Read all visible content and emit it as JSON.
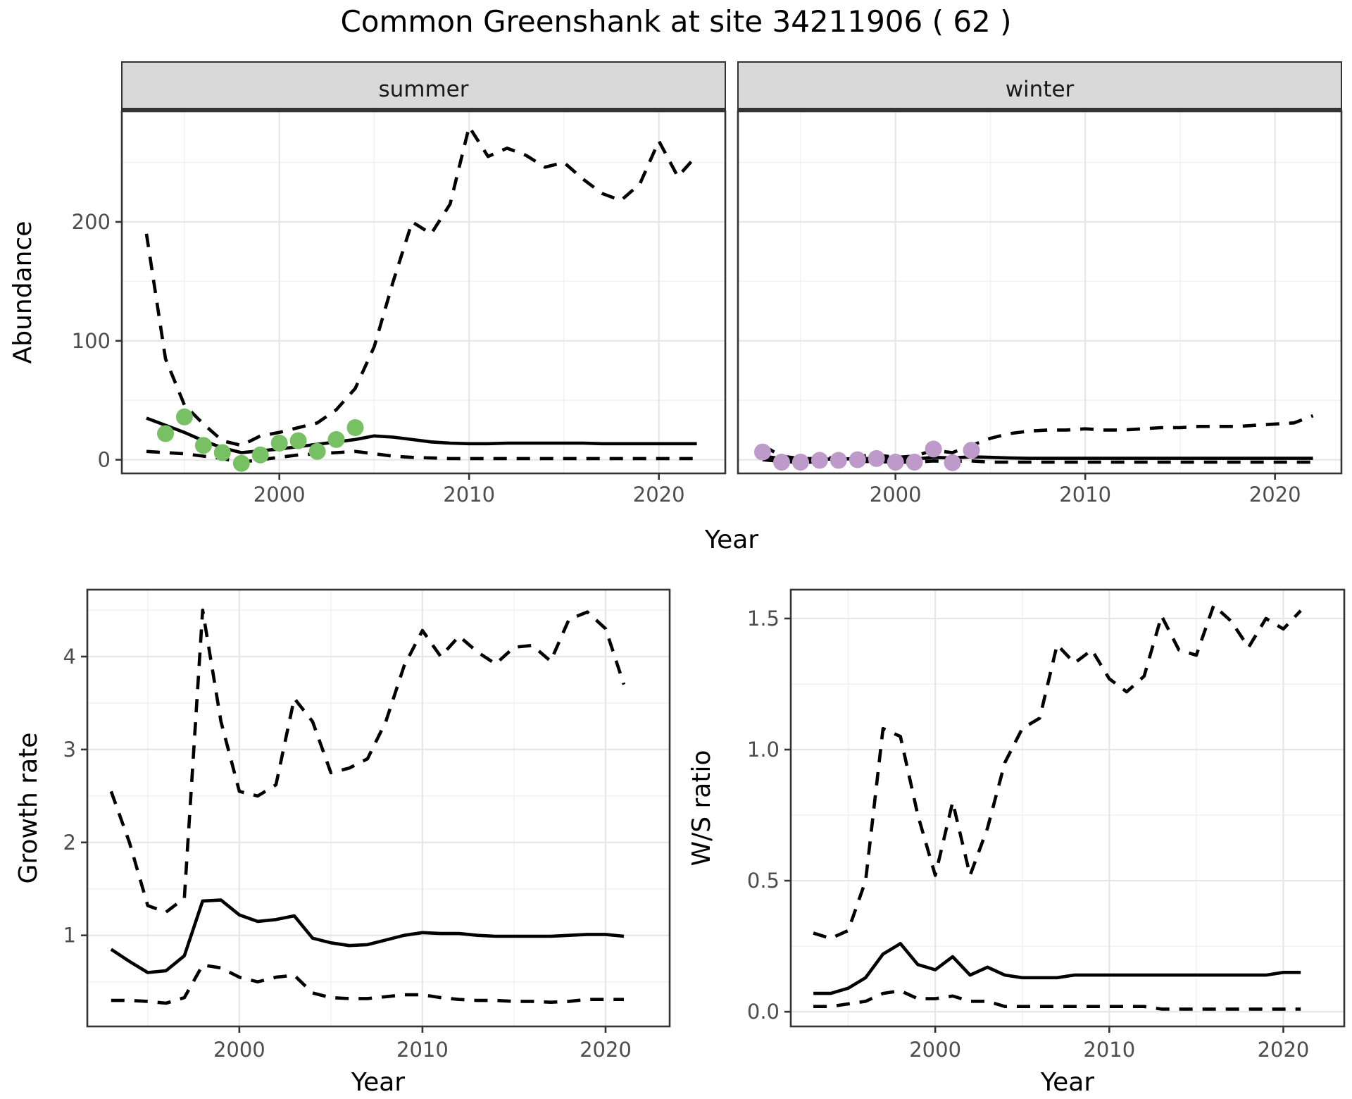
{
  "title": "Common Greenshank at site 34211906 ( 62 )",
  "colors": {
    "line": "#000000",
    "summer_points": "#78c064",
    "winter_points": "#bd9aca",
    "strip_bg": "#d9d9d9",
    "border": "#333333",
    "grid_major": "#e6e6e6",
    "grid_minor": "#f2f2f2",
    "tick_text": "#4d4d4d",
    "facet_text": "#1a1a1a"
  },
  "axes": {
    "top_y": "Abundance",
    "top_x": "Year",
    "bottom_left_y": "Growth rate",
    "bottom_left_x": "Year",
    "bottom_right_y": "W/S ratio",
    "bottom_right_x": "Year"
  },
  "chart_data": [
    {
      "id": "abundance_summer",
      "type": "line",
      "facet": "summer",
      "xlabel": "Year",
      "ylabel": "Abundance",
      "xlim": [
        1991.7,
        2023.5
      ],
      "ylim": [
        -11.5,
        293
      ],
      "x_tick_values": [
        2000,
        2010,
        2020
      ],
      "x_tick_labels": [
        "2000",
        "2010",
        "2020"
      ],
      "x_minor": [
        1995,
        2005,
        2015
      ],
      "y_tick_values": [
        0,
        100,
        200
      ],
      "y_tick_labels": [
        "0",
        "100",
        "200"
      ],
      "y_minor": [
        50,
        150,
        250
      ],
      "series": [
        {
          "name": "upper_ci",
          "style": "dashed",
          "x": [
            1993,
            1994,
            1995,
            1996,
            1997,
            1998,
            1999,
            2000,
            2001,
            2002,
            2003,
            2004,
            2005,
            2006,
            2007,
            2008,
            2009,
            2010,
            2011,
            2012,
            2013,
            2014,
            2015,
            2016,
            2017,
            2018,
            2019,
            2020,
            2021,
            2022
          ],
          "y": [
            190,
            85,
            46,
            30,
            16,
            12,
            20,
            23,
            27,
            31,
            42,
            60,
            95,
            150,
            200,
            190,
            215,
            280,
            255,
            262,
            256,
            246,
            250,
            236,
            224,
            218,
            232,
            268,
            238,
            256
          ]
        },
        {
          "name": "lower_ci",
          "style": "dashed",
          "x": [
            1993,
            1994,
            1995,
            1996,
            1997,
            1998,
            1999,
            2000,
            2001,
            2002,
            2003,
            2004,
            2005,
            2006,
            2007,
            2008,
            2009,
            2010,
            2011,
            2012,
            2013,
            2014,
            2015,
            2016,
            2017,
            2018,
            2019,
            2020,
            2021,
            2022
          ],
          "y": [
            7,
            6,
            5,
            3,
            1,
            -2,
            0,
            2,
            4,
            5,
            6,
            7,
            5,
            3,
            2,
            1.5,
            1,
            1,
            1,
            1,
            1,
            1,
            1,
            1,
            1,
            1,
            1,
            1,
            1,
            1
          ]
        },
        {
          "name": "median",
          "style": "solid",
          "x": [
            1993,
            1994,
            1995,
            1996,
            1997,
            1998,
            1999,
            2000,
            2001,
            2002,
            2003,
            2004,
            2005,
            2006,
            2007,
            2008,
            2009,
            2010,
            2011,
            2012,
            2013,
            2014,
            2015,
            2016,
            2017,
            2018,
            2019,
            2020,
            2021,
            2022
          ],
          "y": [
            35,
            29,
            23,
            16,
            10,
            6,
            7.5,
            9,
            11,
            13,
            15,
            17,
            20,
            19,
            17,
            15,
            14,
            13.5,
            13.5,
            14,
            14,
            14,
            14,
            14,
            13.5,
            13.5,
            13.5,
            13.5,
            13.5,
            13.5
          ]
        },
        {
          "name": "observed_counts",
          "style": "points",
          "color": "#78c064",
          "x": [
            1994,
            1995,
            1996,
            1997,
            1998,
            1999,
            2000,
            2001,
            2002,
            2003,
            2004
          ],
          "y": [
            22,
            36,
            12,
            6,
            -3,
            4,
            14,
            16,
            7,
            17,
            27
          ]
        }
      ]
    },
    {
      "id": "abundance_winter",
      "type": "line",
      "facet": "winter",
      "xlabel": "Year",
      "ylabel": "Abundance",
      "xlim": [
        1991.7,
        2023.5
      ],
      "ylim": [
        -11.5,
        293
      ],
      "x_tick_values": [
        2000,
        2010,
        2020
      ],
      "x_tick_labels": [
        "2000",
        "2010",
        "2020"
      ],
      "x_minor": [
        1995,
        2005,
        2015
      ],
      "y_tick_values": [
        0,
        100,
        200
      ],
      "y_tick_labels": [
        "0",
        "100",
        "200"
      ],
      "y_minor": [
        50,
        150,
        250
      ],
      "series": [
        {
          "name": "upper_ci",
          "style": "dashed",
          "x": [
            1993,
            1994,
            1995,
            1996,
            1997,
            1998,
            1999,
            2000,
            2001,
            2002,
            2003,
            2004,
            2005,
            2006,
            2007,
            2008,
            2009,
            2010,
            2011,
            2012,
            2013,
            2014,
            2015,
            2016,
            2017,
            2018,
            2019,
            2020,
            2021,
            2022
          ],
          "y": [
            12,
            3,
            1,
            1,
            2,
            3,
            4,
            2,
            3,
            8,
            6,
            12,
            18,
            22,
            24,
            25,
            25,
            26,
            25,
            25,
            26,
            27,
            27,
            28,
            28,
            28,
            29,
            30,
            31,
            37
          ]
        },
        {
          "name": "lower_ci",
          "style": "dashed",
          "x": [
            1993,
            1994,
            1995,
            1996,
            1997,
            1998,
            1999,
            2000,
            2001,
            2002,
            2003,
            2004,
            2005,
            2006,
            2007,
            2008,
            2009,
            2010,
            2011,
            2012,
            2013,
            2014,
            2015,
            2016,
            2017,
            2018,
            2019,
            2020,
            2021,
            2022
          ],
          "y": [
            0,
            -1.5,
            -2,
            -2,
            -2,
            -1.5,
            -1.5,
            -2,
            -2,
            -1,
            -1.5,
            -1,
            -2,
            -2,
            -2,
            -2,
            -2,
            -2,
            -2,
            -2,
            -2,
            -2,
            -2,
            -2,
            -2,
            -2,
            -2,
            -2,
            -2,
            -2
          ]
        },
        {
          "name": "median",
          "style": "solid",
          "x": [
            1993,
            1994,
            1995,
            1996,
            1997,
            1998,
            1999,
            2000,
            2001,
            2002,
            2003,
            2004,
            2005,
            2006,
            2007,
            2008,
            2009,
            2010,
            2011,
            2012,
            2013,
            2014,
            2015,
            2016,
            2017,
            2018,
            2019,
            2020,
            2021,
            2022
          ],
          "y": [
            3,
            1,
            0.5,
            0.5,
            0.5,
            1,
            1,
            0.5,
            0.5,
            2,
            1.5,
            2.5,
            2,
            1.5,
            1.2,
            1.2,
            1.2,
            1.2,
            1.2,
            1.2,
            1.2,
            1.2,
            1.2,
            1.2,
            1.2,
            1.2,
            1.2,
            1.2,
            1.2,
            1.2
          ]
        },
        {
          "name": "observed_counts",
          "style": "points",
          "color": "#bd9aca",
          "x": [
            1993,
            1994,
            1995,
            1996,
            1997,
            1998,
            1999,
            2000,
            2001,
            2002,
            2003,
            2004
          ],
          "y": [
            6.5,
            -2,
            -2,
            -0.5,
            -0.5,
            0,
            1,
            -2,
            -2,
            9,
            -2.5,
            8
          ]
        }
      ]
    },
    {
      "id": "growth_rate",
      "type": "line",
      "facet": null,
      "xlabel": "Year",
      "ylabel": "Growth rate",
      "xlim": [
        1991.7,
        2023.5
      ],
      "ylim": [
        0.02,
        4.72
      ],
      "x_tick_values": [
        2000,
        2010,
        2020
      ],
      "x_tick_labels": [
        "2000",
        "2010",
        "2020"
      ],
      "x_minor": [
        1995,
        2005,
        2015
      ],
      "y_tick_values": [
        1,
        2,
        3,
        4
      ],
      "y_tick_labels": [
        "1",
        "2",
        "3",
        "4"
      ],
      "y_minor": [
        0.5,
        1.5,
        2.5,
        3.5,
        4.5
      ],
      "series": [
        {
          "name": "upper_ci",
          "style": "dashed",
          "x": [
            1993,
            1994,
            1995,
            1996,
            1997,
            1998,
            1999,
            2000,
            2001,
            2002,
            2003,
            2004,
            2005,
            2006,
            2007,
            2008,
            2009,
            2010,
            2011,
            2012,
            2013,
            2014,
            2015,
            2016,
            2017,
            2018,
            2019,
            2020,
            2021
          ],
          "y": [
            2.55,
            2.0,
            1.32,
            1.25,
            1.4,
            4.5,
            3.3,
            2.55,
            2.5,
            2.62,
            3.55,
            3.3,
            2.75,
            2.8,
            2.9,
            3.3,
            3.9,
            4.28,
            4.0,
            4.22,
            4.05,
            3.92,
            4.1,
            4.12,
            3.95,
            4.4,
            4.48,
            4.3,
            3.7
          ]
        },
        {
          "name": "lower_ci",
          "style": "dashed",
          "x": [
            1993,
            1994,
            1995,
            1996,
            1997,
            1998,
            1999,
            2000,
            2001,
            2002,
            2003,
            2004,
            2005,
            2006,
            2007,
            2008,
            2009,
            2010,
            2011,
            2012,
            2013,
            2014,
            2015,
            2016,
            2017,
            2018,
            2019,
            2020,
            2021
          ],
          "y": [
            0.3,
            0.3,
            0.29,
            0.27,
            0.33,
            0.68,
            0.65,
            0.55,
            0.5,
            0.55,
            0.57,
            0.38,
            0.33,
            0.32,
            0.32,
            0.34,
            0.36,
            0.36,
            0.33,
            0.31,
            0.3,
            0.3,
            0.29,
            0.29,
            0.28,
            0.29,
            0.31,
            0.31,
            0.31
          ]
        },
        {
          "name": "median",
          "style": "solid",
          "x": [
            1993,
            1994,
            1995,
            1996,
            1997,
            1998,
            1999,
            2000,
            2001,
            2002,
            2003,
            2004,
            2005,
            2006,
            2007,
            2008,
            2009,
            2010,
            2011,
            2012,
            2013,
            2014,
            2015,
            2016,
            2017,
            2018,
            2019,
            2020,
            2021
          ],
          "y": [
            0.85,
            0.72,
            0.6,
            0.62,
            0.78,
            1.37,
            1.38,
            1.22,
            1.15,
            1.17,
            1.21,
            0.97,
            0.92,
            0.89,
            0.9,
            0.95,
            1.0,
            1.03,
            1.02,
            1.02,
            1.0,
            0.99,
            0.99,
            0.99,
            0.99,
            1.0,
            1.01,
            1.01,
            0.99
          ]
        }
      ]
    },
    {
      "id": "ws_ratio",
      "type": "line",
      "facet": null,
      "xlabel": "Year",
      "ylabel": "W/S ratio",
      "xlim": [
        1991.7,
        2023.5
      ],
      "ylim": [
        -0.056,
        1.61
      ],
      "x_tick_values": [
        2000,
        2010,
        2020
      ],
      "x_tick_labels": [
        "2000",
        "2010",
        "2020"
      ],
      "x_minor": [
        1995,
        2005,
        2015
      ],
      "y_tick_values": [
        0.0,
        0.5,
        1.0,
        1.5
      ],
      "y_tick_labels": [
        "0.0",
        "0.5",
        "1.0",
        "1.5"
      ],
      "y_minor": [
        0.25,
        0.75,
        1.25
      ],
      "series": [
        {
          "name": "upper_ci",
          "style": "dashed",
          "x": [
            1993,
            1994,
            1995,
            1996,
            1997,
            1998,
            1999,
            2000,
            2001,
            2002,
            2003,
            2004,
            2005,
            2006,
            2007,
            2008,
            2009,
            2010,
            2011,
            2012,
            2013,
            2014,
            2015,
            2016,
            2017,
            2018,
            2019,
            2020,
            2021
          ],
          "y": [
            0.3,
            0.28,
            0.31,
            0.5,
            1.08,
            1.05,
            0.75,
            0.52,
            0.8,
            0.52,
            0.7,
            0.95,
            1.08,
            1.12,
            1.4,
            1.33,
            1.38,
            1.27,
            1.22,
            1.28,
            1.51,
            1.38,
            1.36,
            1.55,
            1.49,
            1.39,
            1.5,
            1.46,
            1.53
          ]
        },
        {
          "name": "lower_ci",
          "style": "dashed",
          "x": [
            1993,
            1994,
            1995,
            1996,
            1997,
            1998,
            1999,
            2000,
            2001,
            2002,
            2003,
            2004,
            2005,
            2006,
            2007,
            2008,
            2009,
            2010,
            2011,
            2012,
            2013,
            2014,
            2015,
            2016,
            2017,
            2018,
            2019,
            2020,
            2021
          ],
          "y": [
            0.02,
            0.02,
            0.03,
            0.04,
            0.07,
            0.08,
            0.05,
            0.05,
            0.06,
            0.04,
            0.04,
            0.02,
            0.02,
            0.02,
            0.02,
            0.02,
            0.02,
            0.02,
            0.02,
            0.02,
            0.01,
            0.01,
            0.01,
            0.01,
            0.01,
            0.01,
            0.01,
            0.01,
            0.01
          ]
        },
        {
          "name": "median",
          "style": "solid",
          "x": [
            1993,
            1994,
            1995,
            1996,
            1997,
            1998,
            1999,
            2000,
            2001,
            2002,
            2003,
            2004,
            2005,
            2006,
            2007,
            2008,
            2009,
            2010,
            2011,
            2012,
            2013,
            2014,
            2015,
            2016,
            2017,
            2018,
            2019,
            2020,
            2021
          ],
          "y": [
            0.07,
            0.07,
            0.09,
            0.13,
            0.22,
            0.26,
            0.18,
            0.16,
            0.21,
            0.14,
            0.17,
            0.14,
            0.13,
            0.13,
            0.13,
            0.14,
            0.14,
            0.14,
            0.14,
            0.14,
            0.14,
            0.14,
            0.14,
            0.14,
            0.14,
            0.14,
            0.14,
            0.15,
            0.15
          ]
        }
      ]
    }
  ]
}
